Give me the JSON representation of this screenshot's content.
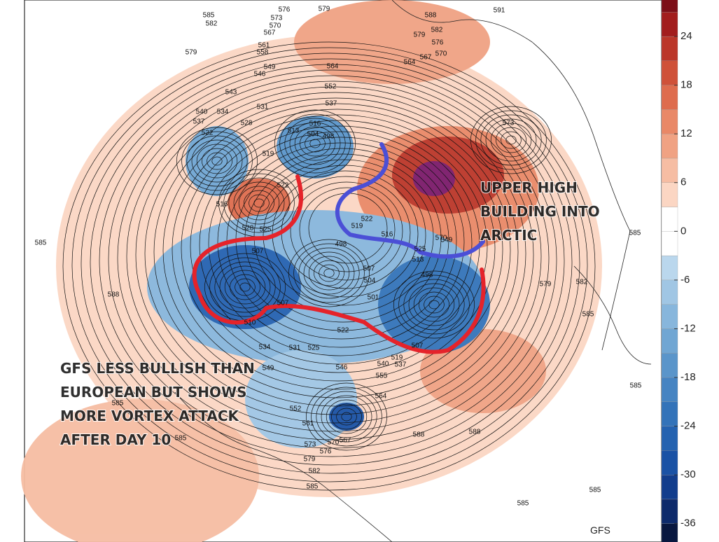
{
  "map": {
    "watermark": "GFS",
    "annotations": [
      [
        "UPPER HIGH",
        "BUILDING INTO",
        "ARCTIC"
      ],
      [
        "GFS LESS BULLISH THAN",
        "EUROPEAN BUT SHOWS",
        "MORE VORTEX ATTACK",
        "AFTER DAY 10"
      ]
    ],
    "contour_labels": [
      585,
      582,
      576,
      573,
      570,
      567,
      579,
      588,
      591,
      579,
      582,
      576,
      570,
      567,
      564,
      561,
      558,
      579,
      549,
      546,
      564,
      543,
      552,
      537,
      531,
      534,
      528,
      540,
      537,
      522,
      516,
      513,
      504,
      498,
      519,
      522,
      516,
      528,
      525,
      573,
      585,
      588,
      585,
      582,
      579,
      585,
      585,
      585,
      585,
      588,
      588,
      585,
      585,
      585,
      582,
      579,
      576,
      573,
      570,
      567,
      561,
      552,
      549,
      531,
      525,
      534,
      507,
      501,
      504,
      507,
      498,
      498,
      507,
      519,
      537,
      540,
      546,
      522,
      555,
      564,
      570,
      549,
      522,
      519,
      516,
      525,
      513,
      507,
      510
    ]
  },
  "colorbar": {
    "lim": [
      -39,
      30
    ],
    "ticks": [
      24,
      18,
      12,
      6,
      0,
      -6,
      -12,
      -18,
      -24,
      -30,
      -36
    ],
    "colors": [
      "#08173f",
      "#0d2a6b",
      "#123d8c",
      "#1a52a5",
      "#2462b0",
      "#3373b9",
      "#4684c2",
      "#5a95ca",
      "#70a6d3",
      "#87b6dc",
      "#a0c6e4",
      "#bad7ed",
      "#ffffff",
      "#ffffff",
      "#fbd6c3",
      "#f6bda3",
      "#f0a283",
      "#e98867",
      "#de6c4e",
      "#cf5139",
      "#bb3629",
      "#a21d1d",
      "#7d0f18"
    ]
  }
}
